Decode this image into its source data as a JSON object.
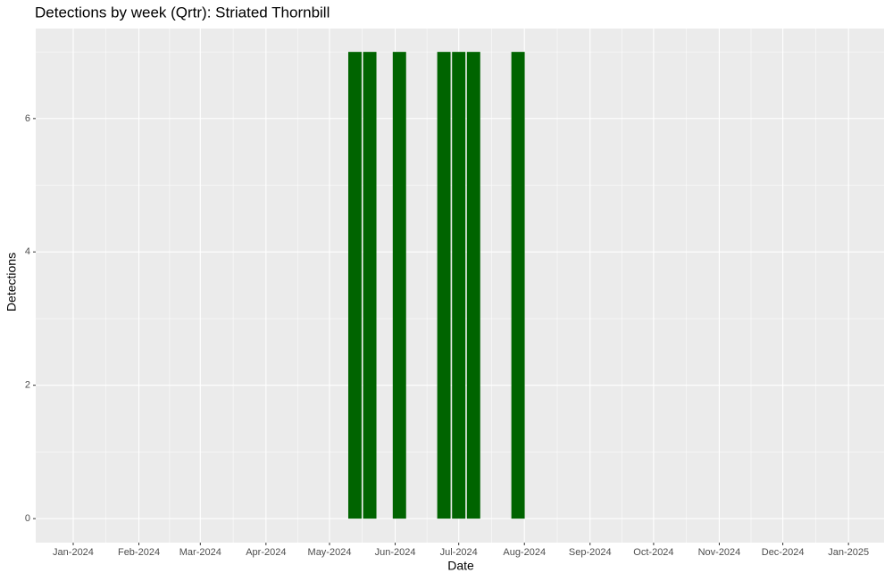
{
  "chart_data": {
    "type": "bar",
    "title": "Detections by week (Qrtr): Striated Thornbill",
    "x_label": "Date",
    "y_label": "Detections",
    "x": [
      133,
      140,
      154,
      175,
      182,
      189,
      210
    ],
    "values": [
      7,
      7,
      7,
      7,
      7,
      7,
      7
    ],
    "color": "#006400",
    "xlim": [
      -17.7,
      382.8
    ],
    "xticks": [
      {
        "value": 0,
        "label": "Jan-2024"
      },
      {
        "value": 31,
        "label": "Feb-2024"
      },
      {
        "value": 60,
        "label": "Mar-2024"
      },
      {
        "value": 91,
        "label": "Apr-2024"
      },
      {
        "value": 121,
        "label": "May-2024"
      },
      {
        "value": 152,
        "label": "Jun-2024"
      },
      {
        "value": 182,
        "label": "Jul-2024"
      },
      {
        "value": 213,
        "label": "Aug-2024"
      },
      {
        "value": 244,
        "label": "Sep-2024"
      },
      {
        "value": 274,
        "label": "Oct-2024"
      },
      {
        "value": 305,
        "label": "Nov-2024"
      },
      {
        "value": 335,
        "label": "Dec-2024"
      },
      {
        "value": 366,
        "label": "Jan-2025"
      }
    ],
    "ylim": [
      -0.36,
      7.35
    ],
    "yticks": [
      0,
      2,
      4,
      6
    ],
    "grid": true
  }
}
